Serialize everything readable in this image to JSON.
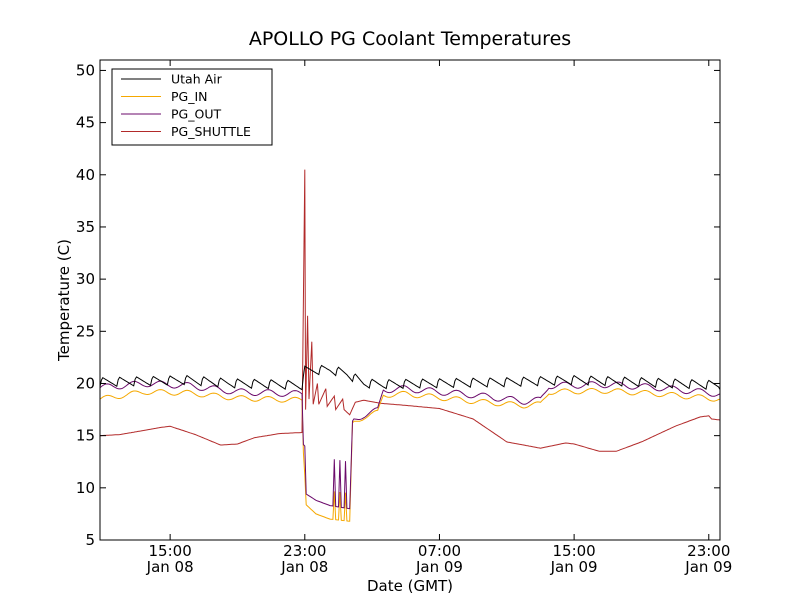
{
  "chart_data": {
    "type": "line",
    "title": "APOLLO PG Coolant Temperatures",
    "xlabel": "Date (GMT)",
    "ylabel": "Temperature (C)",
    "ylim": [
      5,
      51
    ],
    "yticks": [
      5,
      10,
      15,
      20,
      25,
      30,
      35,
      40,
      45,
      50
    ],
    "xlim": [
      "Jan 08 10:50",
      "Jan 09 23:40"
    ],
    "xticks": [
      {
        "t": "Jan 08 15:00",
        "line1": "15:00",
        "line2": "Jan 08"
      },
      {
        "t": "Jan 08 23:00",
        "line1": "23:00",
        "line2": "Jan 08"
      },
      {
        "t": "Jan 09 07:00",
        "line1": "07:00",
        "line2": "Jan 09"
      },
      {
        "t": "Jan 09 15:00",
        "line1": "15:00",
        "line2": "Jan 09"
      },
      {
        "t": "Jan 09 23:00",
        "line1": "23:00",
        "line2": "Jan 09"
      }
    ],
    "grid": false,
    "legend_position": "top-left",
    "series": [
      {
        "name": "Utah Air",
        "color": "#000000",
        "pattern": {
          "period_hours": 1.0,
          "rise": 0.9,
          "mode": "spikes"
        },
        "points": [
          [
            "Jan 08 10:50",
            19.7
          ],
          [
            "Jan 08 13:30",
            19.8
          ],
          [
            "Jan 08 16:00",
            19.9
          ],
          [
            "Jan 08 18:30",
            19.6
          ],
          [
            "Jan 08 21:00",
            19.5
          ],
          [
            "Jan 08 22:50",
            19.4
          ],
          [
            "Jan 08 23:00",
            20.8
          ],
          [
            "Jan 09 00:30",
            20.9
          ],
          [
            "Jan 09 01:30",
            20.5
          ],
          [
            "Jan 09 02:30",
            19.6
          ],
          [
            "Jan 09 03:30",
            19.5
          ],
          [
            "Jan 09 07:00",
            19.6
          ],
          [
            "Jan 09 11:00",
            19.7
          ],
          [
            "Jan 09 15:00",
            19.9
          ],
          [
            "Jan 09 19:00",
            19.7
          ],
          [
            "Jan 09 23:40",
            19.4
          ]
        ]
      },
      {
        "name": "PG_IN",
        "color": "#f5a800",
        "pattern": {
          "period_hours": 1.6,
          "rise": 0.5,
          "mode": "wave"
        },
        "points": [
          [
            "Jan 08 10:50",
            18.5
          ],
          [
            "Jan 08 13:30",
            19.2
          ],
          [
            "Jan 08 16:00",
            19.1
          ],
          [
            "Jan 08 19:00",
            18.6
          ],
          [
            "Jan 08 22:50",
            18.4
          ],
          [
            "Jan 08 23:00",
            8.5
          ],
          [
            "Jan 08 23:40",
            7.5
          ],
          [
            "Jan 09 00:30",
            7.0
          ],
          [
            "Jan 09 01:40",
            6.8
          ],
          [
            "Jan 09 01:50",
            16.2
          ],
          [
            "Jan 09 02:30",
            16.8
          ],
          [
            "Jan 09 03:20",
            17.2
          ],
          [
            "Jan 09 03:40",
            18.9
          ],
          [
            "Jan 09 05:00",
            19.0
          ],
          [
            "Jan 09 09:00",
            18.3
          ],
          [
            "Jan 09 12:00",
            17.9
          ],
          [
            "Jan 09 13:00",
            18.0
          ],
          [
            "Jan 09 13:30",
            19.2
          ],
          [
            "Jan 09 17:00",
            19.3
          ],
          [
            "Jan 09 20:00",
            19.0
          ],
          [
            "Jan 09 23:40",
            18.5
          ]
        ]
      },
      {
        "name": "PG_OUT",
        "color": "#6b0a6b",
        "pattern": {
          "period_hours": 1.6,
          "rise": 0.6,
          "mode": "wave"
        },
        "points": [
          [
            "Jan 08 10:50",
            19.6
          ],
          [
            "Jan 08 13:30",
            20.0
          ],
          [
            "Jan 08 16:00",
            19.8
          ],
          [
            "Jan 08 19:00",
            19.2
          ],
          [
            "Jan 08 22:50",
            19.0
          ],
          [
            "Jan 08 23:00",
            9.5
          ],
          [
            "Jan 08 23:40",
            8.8
          ],
          [
            "Jan 09 00:30",
            8.3
          ],
          [
            "Jan 09 01:40",
            8.0
          ],
          [
            "Jan 09 01:50",
            16.4
          ],
          [
            "Jan 09 02:30",
            17.0
          ],
          [
            "Jan 09 03:20",
            17.4
          ],
          [
            "Jan 09 03:40",
            19.4
          ],
          [
            "Jan 09 05:00",
            19.5
          ],
          [
            "Jan 09 09:00",
            18.9
          ],
          [
            "Jan 09 12:00",
            18.3
          ],
          [
            "Jan 09 13:00",
            18.4
          ],
          [
            "Jan 09 13:30",
            19.8
          ],
          [
            "Jan 09 17:00",
            19.9
          ],
          [
            "Jan 09 20:00",
            19.6
          ],
          [
            "Jan 09 23:40",
            19.0
          ]
        ]
      },
      {
        "name": "PG_SHUTTLE",
        "color": "#b22a2a",
        "pattern": {
          "period_hours": 0,
          "rise": 0,
          "mode": "none"
        },
        "points": [
          [
            "Jan 08 10:50",
            15.0
          ],
          [
            "Jan 08 12:00",
            15.1
          ],
          [
            "Jan 08 14:30",
            15.8
          ],
          [
            "Jan 08 15:00",
            15.9
          ],
          [
            "Jan 08 16:30",
            15.1
          ],
          [
            "Jan 08 18:00",
            14.1
          ],
          [
            "Jan 08 19:00",
            14.2
          ],
          [
            "Jan 08 20:00",
            14.8
          ],
          [
            "Jan 08 21:30",
            15.2
          ],
          [
            "Jan 08 22:50",
            15.3
          ],
          [
            "Jan 08 23:00",
            40.5
          ],
          [
            "Jan 08 23:03",
            17.5
          ],
          [
            "Jan 08 23:10",
            26.5
          ],
          [
            "Jan 08 23:15",
            18.5
          ],
          [
            "Jan 08 23:25",
            24.0
          ],
          [
            "Jan 08 23:30",
            18.0
          ],
          [
            "Jan 08 23:45",
            20.0
          ],
          [
            "Jan 08 23:50",
            18.0
          ],
          [
            "Jan 09 00:15",
            19.5
          ],
          [
            "Jan 09 00:20",
            17.8
          ],
          [
            "Jan 09 00:45",
            18.8
          ],
          [
            "Jan 09 00:50",
            17.5
          ],
          [
            "Jan 09 01:15",
            18.5
          ],
          [
            "Jan 09 01:20",
            17.5
          ],
          [
            "Jan 09 01:40",
            17.0
          ],
          [
            "Jan 09 02:00",
            18.2
          ],
          [
            "Jan 09 02:30",
            18.4
          ],
          [
            "Jan 09 03:30",
            18.1
          ],
          [
            "Jan 09 05:00",
            17.9
          ],
          [
            "Jan 09 07:00",
            17.6
          ],
          [
            "Jan 09 09:00",
            16.6
          ],
          [
            "Jan 09 11:00",
            14.4
          ],
          [
            "Jan 09 13:00",
            13.8
          ],
          [
            "Jan 09 14:30",
            14.3
          ],
          [
            "Jan 09 15:00",
            14.2
          ],
          [
            "Jan 09 16:30",
            13.5
          ],
          [
            "Jan 09 17:30",
            13.5
          ],
          [
            "Jan 09 19:00",
            14.4
          ],
          [
            "Jan 09 21:00",
            15.9
          ],
          [
            "Jan 09 22:30",
            16.8
          ],
          [
            "Jan 09 23:00",
            16.9
          ],
          [
            "Jan 09 23:10",
            16.6
          ],
          [
            "Jan 09 23:40",
            16.5
          ]
        ]
      }
    ]
  }
}
